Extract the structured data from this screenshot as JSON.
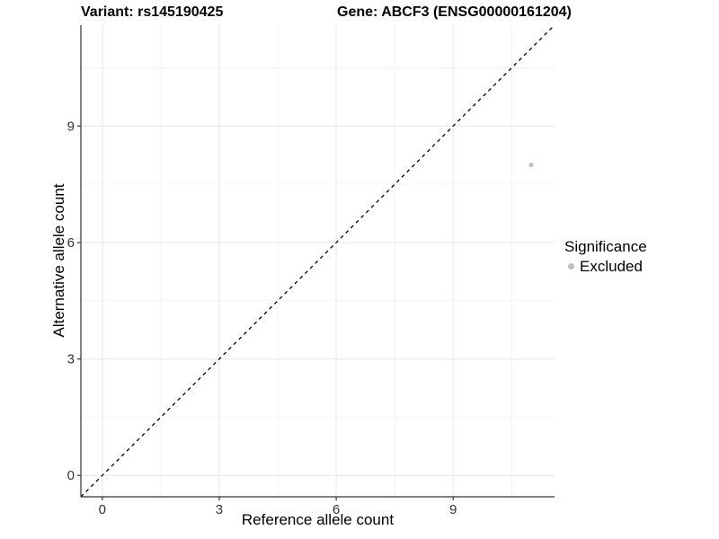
{
  "chart_data": {
    "type": "scatter",
    "title_left": "Variant: rs145190425",
    "title_right": "Gene: ABCF3 (ENSG00000161204)",
    "xlabel": "Reference allele count",
    "ylabel": "Alternative allele count",
    "xlim": [
      -0.55,
      11.6
    ],
    "ylim": [
      -0.55,
      11.6
    ],
    "x_major_ticks": [
      0,
      3,
      6,
      9
    ],
    "y_major_ticks": [
      0,
      3,
      6,
      9
    ],
    "x_minor_gridlines": [
      1.5,
      4.5,
      7.5,
      10.5
    ],
    "y_minor_gridlines": [
      1.5,
      4.5,
      7.5,
      10.5
    ],
    "points": [
      {
        "x": 11,
        "y": 8,
        "significance": "Excluded"
      }
    ],
    "identity_line": {
      "slope": 1,
      "intercept": 0,
      "style": "dashed",
      "color": "#000000"
    },
    "grid": true,
    "legend_position": "right",
    "legend": {
      "title": "Significance",
      "items": [
        {
          "label": "Excluded",
          "color": "#bebebe",
          "marker": "circle"
        }
      ]
    }
  },
  "style": {
    "background": "#ffffff",
    "point_color": "#bebebe",
    "point_radius": 2.5,
    "grid_major_color": "#e7e7e7",
    "grid_minor_color": "#f3f3f3",
    "axis_line_color": "#333333",
    "tick_label_color": "#333333",
    "title_color": "#000000"
  }
}
